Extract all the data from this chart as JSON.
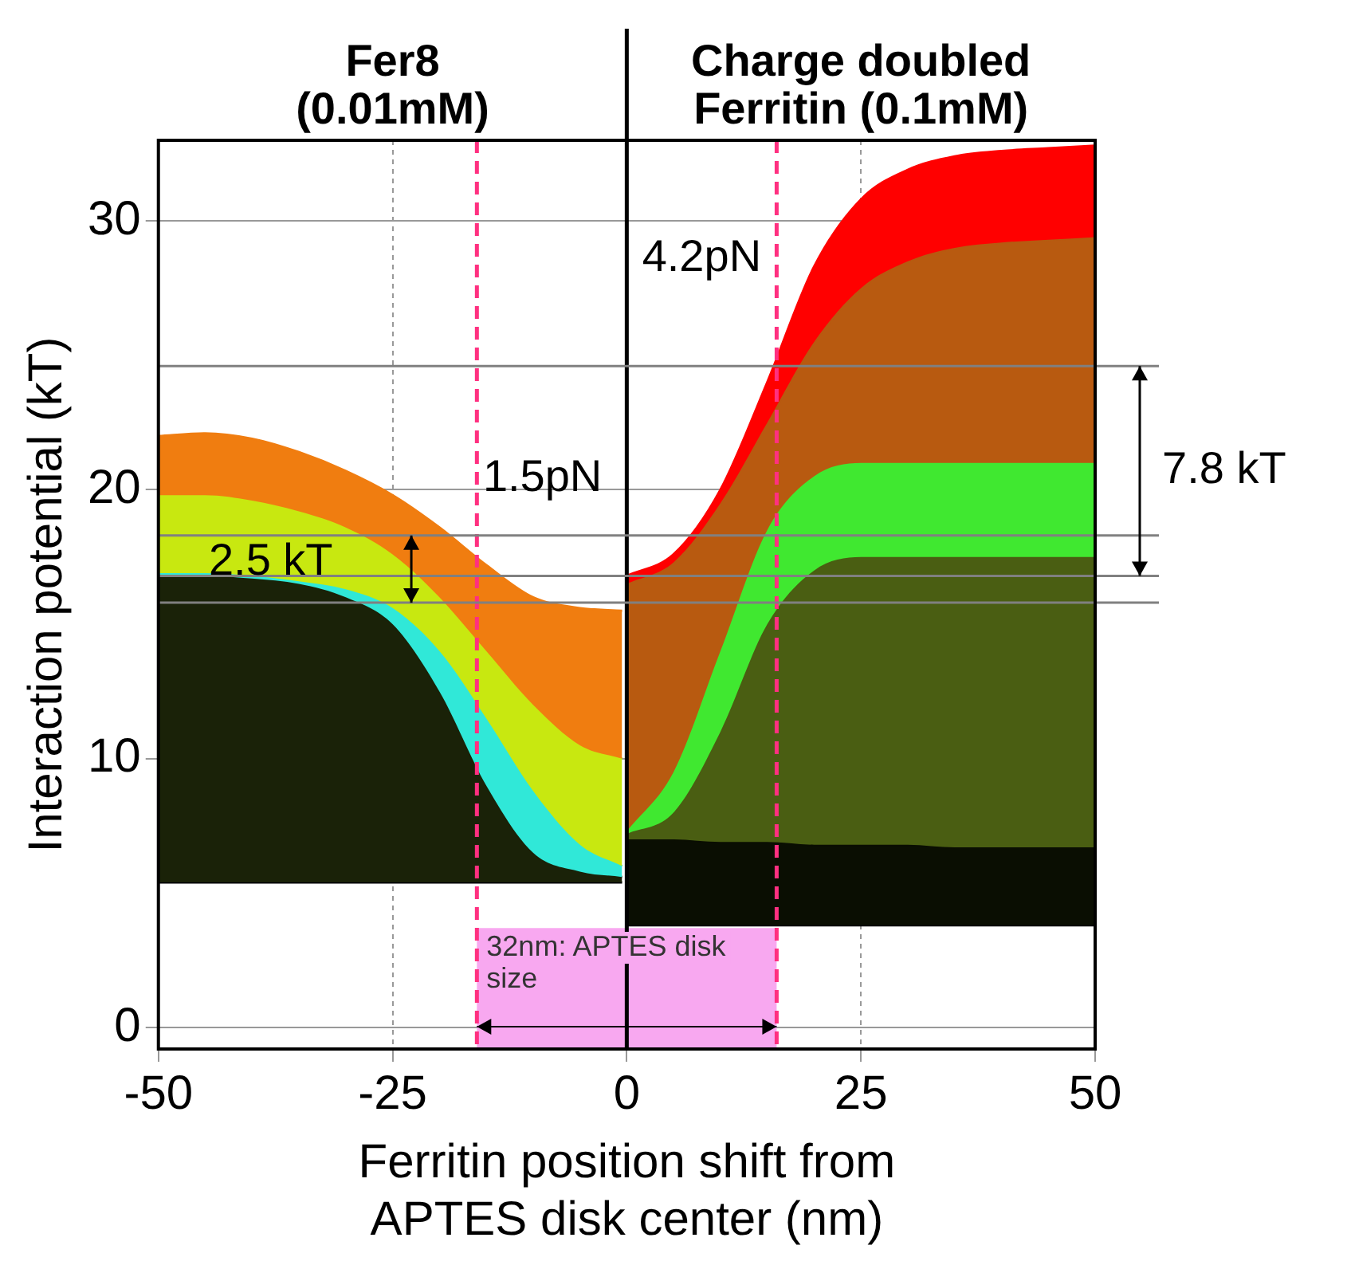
{
  "chart_data": {
    "type": "area",
    "xlabel": "Ferritin position shift from\nAPTES disk center (nm)",
    "ylabel": "Interaction potential (kT)",
    "xlim": [
      -50,
      50
    ],
    "xticks": [
      -50,
      -25,
      0,
      25,
      50
    ],
    "ylim": [
      -0.8,
      33
    ],
    "yticks": [
      0,
      10,
      20,
      30
    ],
    "grid": true,
    "legend": false,
    "series": [
      {
        "color": "#f07d10",
        "x": [
          -50,
          -45,
          -40,
          -35,
          -30,
          -25,
          -20,
          -15,
          -10,
          -5,
          -0.5
        ],
        "values": [
          22.0,
          22.1,
          21.9,
          21.4,
          20.7,
          19.8,
          18.6,
          17.2,
          16.0,
          15.6,
          15.5
        ]
      },
      {
        "color": "#c8e810",
        "x": [
          -50,
          -45,
          -40,
          -35,
          -30,
          -25,
          -20,
          -15,
          -10,
          -5,
          -0.5
        ],
        "values": [
          19.8,
          19.8,
          19.6,
          19.2,
          18.6,
          17.6,
          16.0,
          14.0,
          12.0,
          10.5,
          10.0
        ]
      },
      {
        "color": "#30e8d8",
        "x": [
          -50,
          -45,
          -40,
          -35,
          -30,
          -25,
          -20,
          -15,
          -10,
          -5,
          -0.5
        ],
        "values": [
          16.9,
          16.9,
          16.8,
          16.6,
          16.3,
          15.6,
          14.0,
          11.5,
          8.8,
          6.8,
          6.0
        ]
      },
      {
        "color": "#1a2208",
        "x": [
          -50,
          -45,
          -40,
          -35,
          -30,
          -25,
          -20,
          -15,
          -10,
          -5,
          -0.5
        ],
        "values": [
          16.8,
          16.8,
          16.7,
          16.5,
          16.0,
          15.0,
          12.5,
          9.0,
          6.5,
          5.8,
          5.6
        ]
      },
      {
        "type": "line",
        "color": "#000000",
        "x": [
          -50,
          -0.5
        ],
        "values": [
          5.4,
          5.4
        ]
      },
      {
        "color": "#ff0000",
        "x": [
          0,
          5,
          10,
          15,
          20,
          25,
          30,
          35,
          40,
          45,
          50
        ],
        "values": [
          16.8,
          17.6,
          20.0,
          24.0,
          28.3,
          30.8,
          31.9,
          32.4,
          32.6,
          32.7,
          32.8
        ]
      },
      {
        "color": "#b85a10",
        "x": [
          0,
          5,
          10,
          15,
          20,
          25,
          30,
          35,
          40,
          45,
          50
        ],
        "values": [
          16.5,
          17.3,
          19.5,
          22.5,
          25.5,
          27.5,
          28.5,
          29.0,
          29.2,
          29.3,
          29.4
        ]
      },
      {
        "color": "#40e830",
        "x": [
          0,
          5,
          10,
          15,
          20,
          25,
          30,
          35,
          40,
          45,
          50
        ],
        "values": [
          7.3,
          9.5,
          14.0,
          18.5,
          20.5,
          21.0,
          21.0,
          21.0,
          21.0,
          21.0,
          21.0
        ]
      },
      {
        "color": "#4a5e12",
        "x": [
          0,
          5,
          10,
          15,
          20,
          25,
          30,
          35,
          40,
          45,
          50
        ],
        "values": [
          7.2,
          8.0,
          11.0,
          15.0,
          17.0,
          17.5,
          17.5,
          17.5,
          17.5,
          17.5,
          17.5
        ]
      },
      {
        "color": "#0a0e02",
        "x": [
          0,
          5,
          10,
          15,
          20,
          25,
          30,
          35,
          40,
          45,
          50
        ],
        "values": [
          7.0,
          7.0,
          6.9,
          6.9,
          6.8,
          6.8,
          6.8,
          6.7,
          6.7,
          6.7,
          6.7
        ]
      },
      {
        "type": "line",
        "color": "#000000",
        "x": [
          0,
          50
        ],
        "values": [
          3.8,
          3.8
        ]
      }
    ],
    "ref_lines": [
      {
        "axis": "x",
        "value": -16,
        "color": "#ff3080",
        "line_style": "dashed"
      },
      {
        "axis": "x",
        "value": 16,
        "color": "#ff3080",
        "line_style": "dashed"
      },
      {
        "axis": "x",
        "value": 0,
        "color": "#000000",
        "line_style": "solid"
      },
      {
        "axis": "y",
        "value": 15.8,
        "color": "#808080",
        "line_style": "solid"
      },
      {
        "axis": "y",
        "value": 18.3,
        "color": "#808080",
        "line_style": "solid"
      },
      {
        "axis": "y",
        "value": 16.8,
        "color": "#808080",
        "line_style": "solid"
      },
      {
        "axis": "y",
        "value": 24.6,
        "color": "#808080",
        "line_style": "solid"
      }
    ],
    "bands": [
      {
        "axis": "x",
        "from": -16,
        "to": 16,
        "label": "32nm: APTES disk size",
        "color": "#f8a8f0"
      }
    ],
    "annotations": [
      "Fer8\n(0.01mM)",
      "Charge doubled\nFerritin (0.1mM)",
      "7.8 kT",
      "2.5 kT",
      "1.5pN",
      "4.2pN"
    ]
  }
}
